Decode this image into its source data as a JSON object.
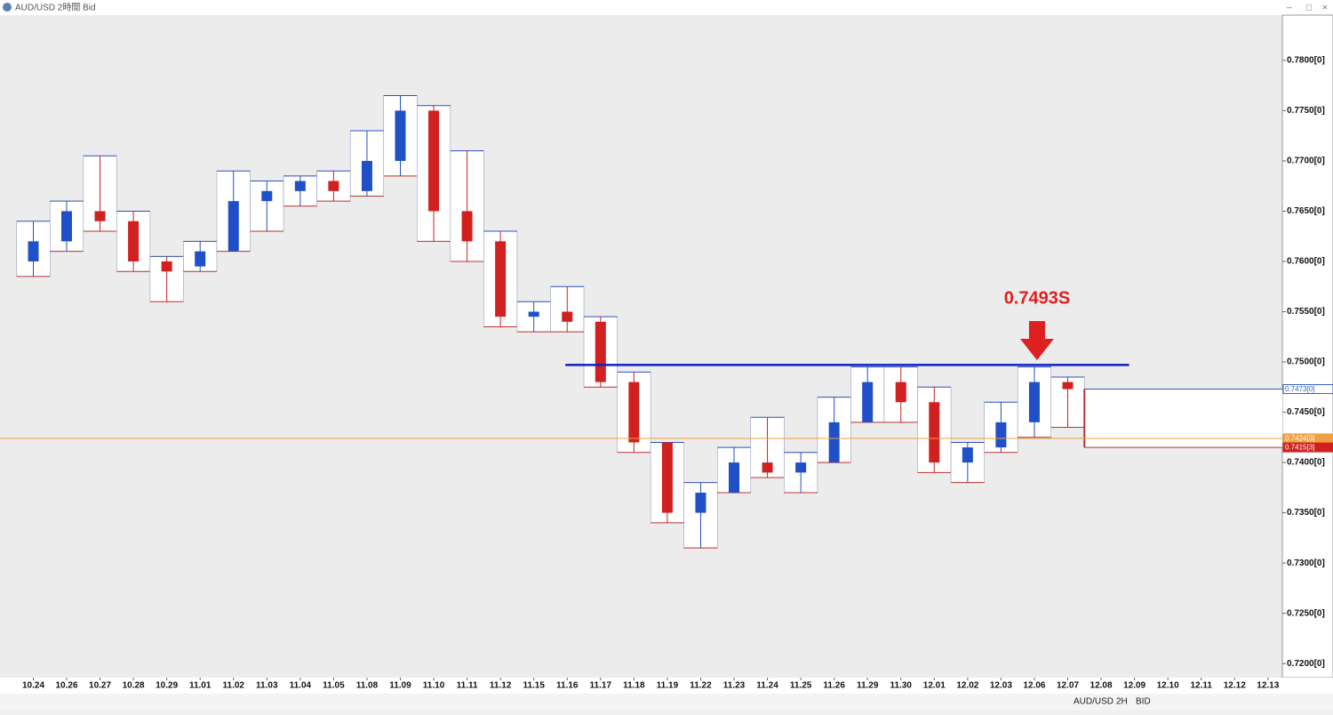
{
  "window": {
    "title": "AUD/USD 2時間 Bid",
    "toolbar": [
      "AUD/USD",
      "2H",
      "BID"
    ]
  },
  "chart_data": {
    "type": "candlestick",
    "categories": [
      "10.24",
      "10.26",
      "10.27",
      "10.28",
      "10.29",
      "11.01",
      "11.02",
      "11.03",
      "11.04",
      "11.05",
      "11.08",
      "11.09",
      "11.10",
      "11.11",
      "11.12",
      "11.15",
      "11.16",
      "11.17",
      "11.18",
      "11.19",
      "11.22",
      "11.23",
      "11.24",
      "11.25",
      "11.26",
      "11.29",
      "11.30",
      "12.01",
      "12.02",
      "12.03",
      "12.06",
      "12.07",
      "12.08",
      "12.09",
      "12.10",
      "12.11",
      "12.12",
      "12.13"
    ],
    "open": [
      0.76,
      0.762,
      0.765,
      0.764,
      0.76,
      0.7595,
      0.761,
      0.766,
      0.767,
      0.768,
      0.767,
      0.77,
      0.775,
      0.765,
      0.762,
      0.7545,
      0.755,
      0.754,
      0.748,
      0.742,
      0.735,
      0.737,
      0.74,
      0.739,
      0.74,
      0.744,
      0.748,
      0.746,
      0.74,
      0.7415,
      0.744,
      0.748,
      null,
      null,
      null,
      null,
      null,
      null
    ],
    "high": [
      0.764,
      0.766,
      0.7705,
      0.765,
      0.7605,
      0.762,
      0.769,
      0.768,
      0.7685,
      0.769,
      0.773,
      0.7765,
      0.7755,
      0.771,
      0.763,
      0.756,
      0.7575,
      0.7545,
      0.749,
      0.742,
      0.738,
      0.7415,
      0.7445,
      0.741,
      0.7465,
      0.7495,
      0.7495,
      0.7475,
      0.742,
      0.746,
      0.7495,
      0.7485,
      null,
      null,
      null,
      null,
      null,
      null
    ],
    "low": [
      0.7585,
      0.761,
      0.763,
      0.759,
      0.756,
      0.759,
      0.761,
      0.763,
      0.7655,
      0.766,
      0.7665,
      0.7685,
      0.762,
      0.76,
      0.7535,
      0.753,
      0.753,
      0.7475,
      0.741,
      0.734,
      0.7315,
      0.737,
      0.7385,
      0.737,
      0.74,
      0.744,
      0.744,
      0.739,
      0.738,
      0.741,
      0.7425,
      0.7435,
      null,
      null,
      null,
      null,
      null,
      null
    ],
    "close": [
      0.762,
      0.765,
      0.764,
      0.76,
      0.759,
      0.761,
      0.766,
      0.767,
      0.768,
      0.767,
      0.77,
      0.775,
      0.765,
      0.762,
      0.7545,
      0.755,
      0.754,
      0.748,
      0.742,
      0.735,
      0.737,
      0.74,
      0.739,
      0.74,
      0.744,
      0.748,
      0.746,
      0.74,
      0.7415,
      0.744,
      0.748,
      0.7473,
      null,
      null,
      null,
      null,
      null,
      null
    ],
    "up_color": "#2050c8",
    "down_color": "#d02020",
    "ylim": [
      0.7186,
      0.7845
    ],
    "yticks": [
      {
        "value": 0.72,
        "label": "0.7200[0]"
      },
      {
        "value": 0.725,
        "label": "0.7250[0]"
      },
      {
        "value": 0.73,
        "label": "0.7300[0]"
      },
      {
        "value": 0.735,
        "label": "0.7350[0]"
      },
      {
        "value": 0.74,
        "label": "0.7400[0]"
      },
      {
        "value": 0.745,
        "label": "0.7450[0]"
      },
      {
        "value": 0.75,
        "label": "0.7500[0]"
      },
      {
        "value": 0.755,
        "label": "0.7550[0]"
      },
      {
        "value": 0.76,
        "label": "0.7600[0]"
      },
      {
        "value": 0.765,
        "label": "0.7650[0]"
      },
      {
        "value": 0.77,
        "label": "0.7700[0]"
      },
      {
        "value": 0.775,
        "label": "0.7750[0]"
      },
      {
        "value": 0.78,
        "label": "0.7800[0]"
      }
    ],
    "price_tags": [
      {
        "value": 0.7473,
        "label": "0.7473[0]",
        "color": "#3060d0"
      },
      {
        "value": 0.7424,
        "label": "0.7424[3]",
        "color": "#f0a040"
      },
      {
        "value": 0.7415,
        "label": "0.7415[3]",
        "color": "#d02020"
      }
    ],
    "resistance": {
      "value": 0.7497,
      "start": "11.16",
      "end": "12.09",
      "color": "#1020c0"
    },
    "annotation": {
      "text": "0.7493S",
      "at": "12.06",
      "color": "#e02020"
    }
  }
}
